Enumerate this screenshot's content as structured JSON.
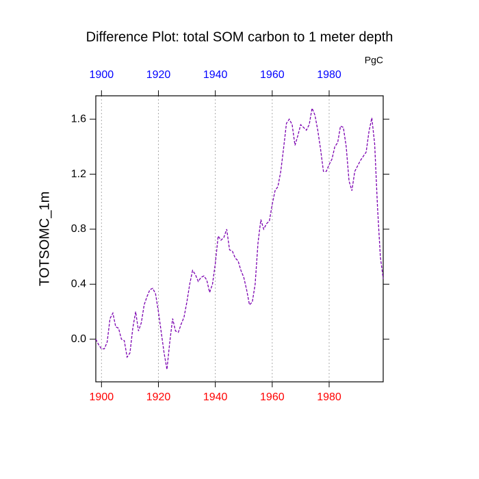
{
  "chart_data": {
    "type": "line",
    "title": "Difference Plot: total SOM carbon to 1 meter depth",
    "units_label": "PgC",
    "y_label": "TOTSOMC_1m",
    "x": [
      1898,
      1899,
      1900,
      1901,
      1902,
      1903,
      1904,
      1905,
      1906,
      1907,
      1908,
      1909,
      1910,
      1911,
      1912,
      1913,
      1914,
      1915,
      1916,
      1917,
      1918,
      1919,
      1920,
      1921,
      1922,
      1923,
      1924,
      1925,
      1926,
      1927,
      1928,
      1929,
      1930,
      1931,
      1932,
      1933,
      1934,
      1935,
      1936,
      1937,
      1938,
      1939,
      1940,
      1941,
      1942,
      1943,
      1944,
      1945,
      1946,
      1947,
      1948,
      1949,
      1950,
      1951,
      1952,
      1953,
      1954,
      1955,
      1956,
      1957,
      1958,
      1959,
      1960,
      1961,
      1962,
      1963,
      1964,
      1965,
      1966,
      1967,
      1968,
      1969,
      1970,
      1971,
      1972,
      1973,
      1974,
      1975,
      1976,
      1977,
      1978,
      1979,
      1980,
      1981,
      1982,
      1983,
      1984,
      1985,
      1986,
      1987,
      1988,
      1989,
      1990,
      1991,
      1992,
      1993,
      1994,
      1995,
      1996,
      1997,
      1998,
      1999
    ],
    "series": [
      {
        "color": "#7a00b0",
        "values": [
          0.0,
          -0.04,
          -0.07,
          -0.07,
          -0.02,
          0.15,
          0.19,
          0.09,
          0.08,
          0.0,
          -0.01,
          -0.13,
          -0.1,
          0.08,
          0.2,
          0.06,
          0.12,
          0.25,
          0.31,
          0.36,
          0.37,
          0.33,
          0.2,
          0.05,
          -0.1,
          -0.22,
          -0.02,
          0.15,
          0.06,
          0.05,
          0.11,
          0.16,
          0.27,
          0.4,
          0.5,
          0.47,
          0.42,
          0.45,
          0.46,
          0.43,
          0.34,
          0.4,
          0.55,
          0.75,
          0.72,
          0.74,
          0.8,
          0.65,
          0.64,
          0.59,
          0.57,
          0.5,
          0.45,
          0.36,
          0.25,
          0.27,
          0.4,
          0.7,
          0.87,
          0.8,
          0.84,
          0.86,
          0.98,
          1.08,
          1.11,
          1.22,
          1.39,
          1.57,
          1.6,
          1.56,
          1.41,
          1.48,
          1.56,
          1.54,
          1.52,
          1.56,
          1.68,
          1.63,
          1.52,
          1.38,
          1.22,
          1.22,
          1.27,
          1.31,
          1.4,
          1.43,
          1.55,
          1.54,
          1.4,
          1.15,
          1.08,
          1.22,
          1.26,
          1.3,
          1.33,
          1.36,
          1.51,
          1.61,
          1.42,
          0.96,
          0.6,
          0.44
        ]
      }
    ],
    "xlim": [
      1898,
      1999
    ],
    "xticks": [
      1900,
      1920,
      1940,
      1960,
      1980
    ],
    "ylim": [
      -0.31,
      1.77
    ],
    "yticks": [
      {
        "value": 0,
        "label": "0.0"
      },
      0.4,
      0.8,
      1.2,
      1.6
    ],
    "x_grid": true,
    "top_xtick_color": "#0000ff",
    "bottom_xtick_color": "#ff0000",
    "dashed": true
  }
}
